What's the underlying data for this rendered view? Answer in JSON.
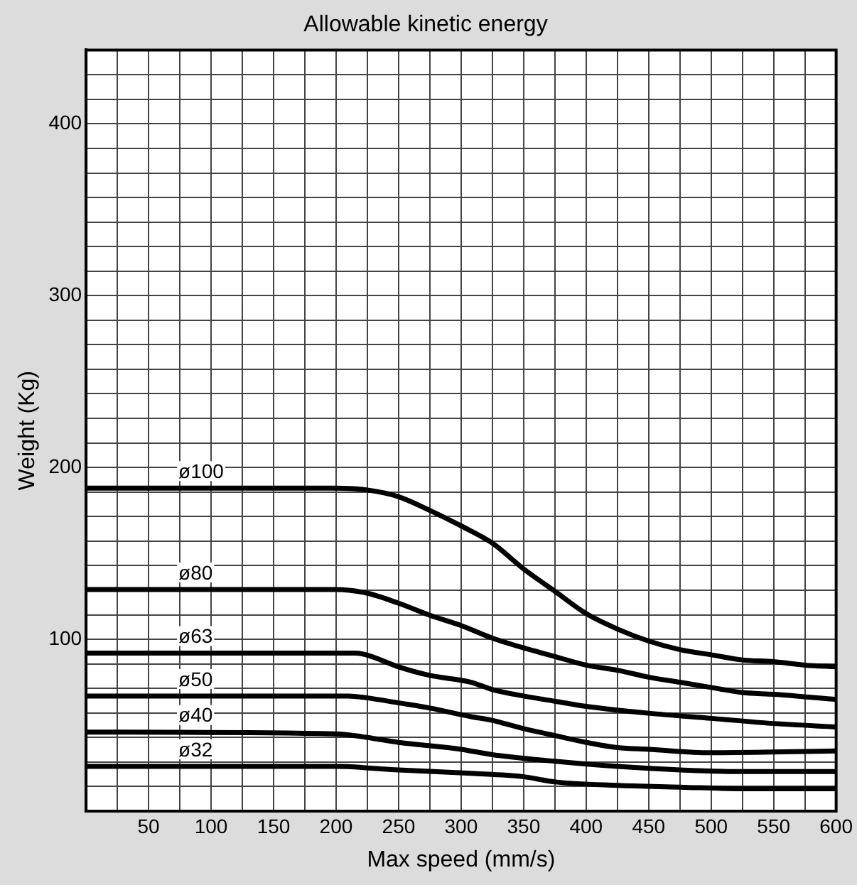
{
  "chart_data": {
    "type": "line",
    "title": "Allowable kinetic energy",
    "xlabel": "Max speed (mm/s)",
    "ylabel": "Weight (Kg)",
    "xlim": [
      0,
      600
    ],
    "ylim": [
      0,
      443
    ],
    "xticks": [
      {
        "value": 25,
        "label": null
      },
      50,
      {
        "value": 75,
        "label": null
      },
      100,
      {
        "value": 125,
        "label": null
      },
      150,
      {
        "value": 175,
        "label": null
      },
      200,
      {
        "value": 225,
        "label": null
      },
      250,
      {
        "value": 275,
        "label": null
      },
      300,
      {
        "value": 325,
        "label": null
      },
      350,
      {
        "value": 375,
        "label": null
      },
      400,
      {
        "value": 425,
        "label": null
      },
      450,
      {
        "value": 475,
        "label": null
      },
      500,
      {
        "value": 525,
        "label": null
      },
      550,
      {
        "value": 575,
        "label": null
      },
      600
    ],
    "yticks": [
      {
        "value": 14.3,
        "label": null
      },
      {
        "value": 28.6,
        "label": null
      },
      {
        "value": 42.9,
        "label": null
      },
      {
        "value": 57.1,
        "label": null
      },
      {
        "value": 71.4,
        "label": null
      },
      {
        "value": 85.7,
        "label": null
      },
      100,
      {
        "value": 114.3,
        "label": null
      },
      {
        "value": 128.6,
        "label": null
      },
      {
        "value": 142.9,
        "label": null
      },
      {
        "value": 157.1,
        "label": null
      },
      {
        "value": 171.4,
        "label": null
      },
      {
        "value": 185.7,
        "label": null
      },
      200,
      {
        "value": 214.3,
        "label": null
      },
      {
        "value": 228.6,
        "label": null
      },
      {
        "value": 242.9,
        "label": null
      },
      {
        "value": 257.1,
        "label": null
      },
      {
        "value": 271.4,
        "label": null
      },
      {
        "value": 285.7,
        "label": null
      },
      300,
      {
        "value": 314.3,
        "label": null
      },
      {
        "value": 328.6,
        "label": null
      },
      {
        "value": 342.9,
        "label": null
      },
      {
        "value": 357.1,
        "label": null
      },
      {
        "value": 371.4,
        "label": null
      },
      {
        "value": 385.7,
        "label": null
      },
      400,
      {
        "value": 414.3,
        "label": null
      },
      {
        "value": 428.6,
        "label": null
      }
    ],
    "grid": true,
    "legend": false,
    "marker": "none",
    "line_style": "solid",
    "series": [
      {
        "name": "ø100",
        "color": "#000000",
        "x": [
          0,
          200,
          224,
          250,
          275,
          300,
          325,
          350,
          375,
          400,
          425,
          450,
          475,
          500,
          525,
          550,
          575,
          600
        ],
        "values": [
          188,
          188,
          187,
          183,
          175,
          166,
          156,
          141,
          128,
          115,
          106,
          99,
          94,
          91,
          88,
          87,
          85,
          84
        ]
      },
      {
        "name": "ø80",
        "color": "#000000",
        "x": [
          0,
          200,
          224,
          250,
          275,
          300,
          324,
          350,
          375,
          400,
          425,
          450,
          475,
          500,
          525,
          550,
          600
        ],
        "values": [
          129,
          129,
          127,
          121,
          114,
          108,
          101,
          95,
          90,
          85,
          82,
          78,
          75,
          72,
          69,
          68,
          65
        ]
      },
      {
        "name": "ø63",
        "color": "#000000",
        "x": [
          0,
          215,
          224,
          250,
          275,
          308,
          324,
          350,
          375,
          400,
          450,
          500,
          550,
          600
        ],
        "values": [
          92,
          92,
          91,
          84,
          79,
          75,
          71,
          67,
          64,
          61,
          57,
          54,
          51,
          49
        ]
      },
      {
        "name": "ø50",
        "color": "#000000",
        "x": [
          0,
          210,
          224,
          250,
          275,
          308,
          324,
          350,
          375,
          400,
          425,
          450,
          500,
          600
        ],
        "values": [
          67,
          67,
          66,
          63,
          60,
          55,
          53,
          48,
          44,
          40,
          37,
          36,
          34,
          35
        ]
      },
      {
        "name": "ø40",
        "color": "#000000",
        "x": [
          0,
          200,
          224,
          250,
          300,
          324,
          375,
          425,
          475,
          525,
          600
        ],
        "values": [
          46,
          45,
          43,
          40,
          36,
          33,
          29,
          26,
          24,
          23,
          23
        ]
      },
      {
        "name": "ø32",
        "color": "#000000",
        "x": [
          0,
          200,
          250,
          308,
          350,
          375,
          425,
          475,
          525,
          600
        ],
        "values": [
          26,
          26,
          24,
          22,
          20,
          17,
          15,
          14,
          13,
          13
        ]
      }
    ]
  }
}
